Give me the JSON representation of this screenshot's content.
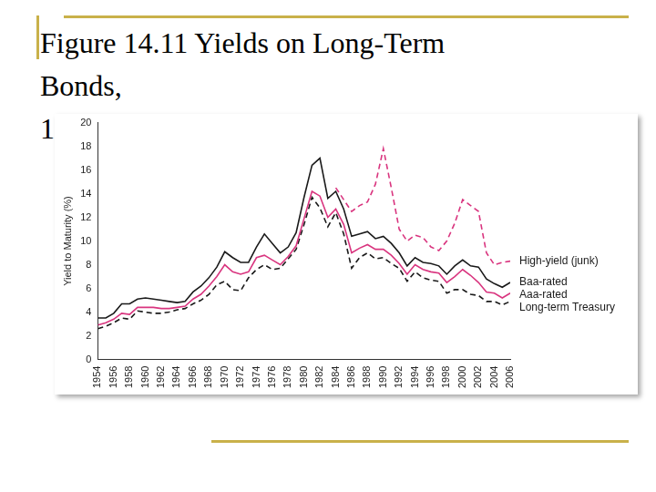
{
  "title": [
    "Figure 14.11 Yields on Long-Term",
    "Bonds,",
    "1"
  ],
  "chart_data": {
    "type": "line",
    "y_label": "Yield to Maturity (%)",
    "x": [
      1954,
      1955,
      1956,
      1957,
      1958,
      1959,
      1960,
      1961,
      1962,
      1963,
      1964,
      1965,
      1966,
      1967,
      1968,
      1969,
      1970,
      1971,
      1972,
      1973,
      1974,
      1975,
      1976,
      1977,
      1978,
      1979,
      1980,
      1981,
      1982,
      1983,
      1984,
      1985,
      1986,
      1987,
      1988,
      1989,
      1990,
      1991,
      1992,
      1993,
      1994,
      1995,
      1996,
      1997,
      1998,
      1999,
      2000,
      2001,
      2002,
      2003,
      2004,
      2005,
      2006
    ],
    "xlim": [
      1954,
      2006
    ],
    "xticks": [
      1954,
      1956,
      1958,
      1960,
      1962,
      1964,
      1966,
      1968,
      1970,
      1972,
      1974,
      1976,
      1978,
      1980,
      1982,
      1984,
      1986,
      1988,
      1990,
      1992,
      1994,
      1996,
      1998,
      2000,
      2002,
      2004,
      2006
    ],
    "ylim": [
      0,
      20
    ],
    "yticks": [
      0,
      2,
      4,
      6,
      8,
      10,
      12,
      14,
      16,
      18,
      20
    ],
    "grid": false,
    "legend": "right",
    "series": [
      {
        "name": "High-yield (junk)",
        "color": "#d9357f",
        "line_style": "dashed",
        "marker": "none",
        "values": [
          null,
          null,
          null,
          null,
          null,
          null,
          null,
          null,
          null,
          null,
          null,
          null,
          null,
          null,
          null,
          null,
          null,
          null,
          null,
          null,
          null,
          null,
          null,
          null,
          null,
          null,
          null,
          null,
          null,
          null,
          14.5,
          13.5,
          12.5,
          13.0,
          13.3,
          14.8,
          17.8,
          14.5,
          11.0,
          10.0,
          10.5,
          10.3,
          9.5,
          9.2,
          10.0,
          11.5,
          13.5,
          13.0,
          12.5,
          9.0,
          8.0,
          8.2,
          8.3
        ]
      },
      {
        "name": "Baa-rated",
        "color": "#1a1a1a",
        "line_style": "solid",
        "marker": "none",
        "values": [
          3.5,
          3.5,
          3.9,
          4.7,
          4.7,
          5.1,
          5.2,
          5.1,
          5.0,
          4.9,
          4.8,
          4.9,
          5.7,
          6.2,
          6.9,
          7.8,
          9.1,
          8.6,
          8.2,
          8.2,
          9.5,
          10.6,
          9.8,
          9.0,
          9.5,
          10.7,
          13.7,
          16.4,
          17.0,
          13.6,
          14.2,
          12.7,
          10.4,
          10.6,
          10.8,
          10.2,
          10.4,
          9.8,
          9.0,
          7.9,
          8.6,
          8.2,
          8.1,
          7.9,
          7.2,
          7.9,
          8.4,
          7.9,
          7.8,
          6.8,
          6.4,
          6.1,
          6.5
        ]
      },
      {
        "name": "Aaa-rated",
        "color": "#d9357f",
        "line_style": "solid",
        "marker": "none",
        "values": [
          2.9,
          3.1,
          3.4,
          3.9,
          3.8,
          4.4,
          4.4,
          4.4,
          4.3,
          4.3,
          4.4,
          4.5,
          5.1,
          5.5,
          6.2,
          7.0,
          8.0,
          7.4,
          7.2,
          7.4,
          8.6,
          8.8,
          8.4,
          8.0,
          8.7,
          9.6,
          11.9,
          14.2,
          13.8,
          12.0,
          12.7,
          11.4,
          9.0,
          9.4,
          9.7,
          9.3,
          9.3,
          8.8,
          8.1,
          7.2,
          8.0,
          7.6,
          7.4,
          7.3,
          6.5,
          7.0,
          7.6,
          7.1,
          6.5,
          5.7,
          5.6,
          5.2,
          5.6
        ]
      },
      {
        "name": "Long-term Treasury",
        "color": "#1a1a1a",
        "line_style": "dashed",
        "marker": "none",
        "values": [
          2.6,
          2.8,
          3.1,
          3.5,
          3.4,
          4.1,
          4.0,
          3.9,
          3.9,
          4.0,
          4.2,
          4.3,
          4.7,
          5.0,
          5.5,
          6.3,
          6.6,
          5.9,
          5.8,
          6.9,
          7.6,
          8.0,
          7.6,
          7.7,
          8.5,
          9.3,
          11.4,
          13.7,
          12.8,
          11.2,
          12.4,
          10.6,
          7.7,
          8.6,
          9.0,
          8.5,
          8.6,
          8.1,
          7.7,
          6.6,
          7.4,
          6.9,
          6.7,
          6.6,
          5.6,
          5.9,
          5.9,
          5.5,
          5.4,
          4.9,
          4.9,
          4.6,
          4.9
        ]
      }
    ]
  }
}
